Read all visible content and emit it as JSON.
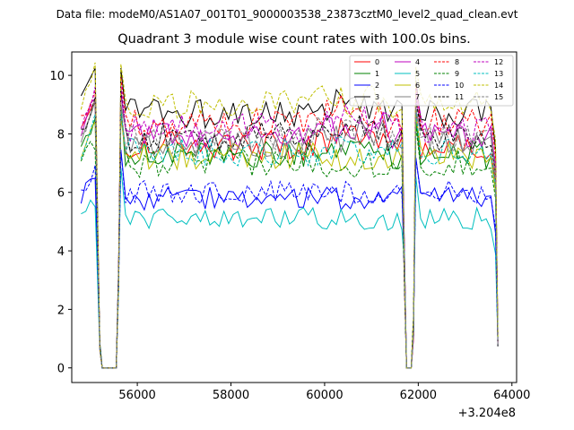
{
  "header": {
    "data_file": "Data file: modeM0/AS1A07_001T01_9000003538_23873cztM0_level2_quad_clean.evt"
  },
  "chart_data": {
    "type": "line",
    "title": "Quadrant 3 module wise count rates with 100.0s bins.",
    "xlabel": "",
    "ylabel": "",
    "x_offset_label": "+3.204e8",
    "xlim": [
      54600,
      64100
    ],
    "ylim": [
      -0.5,
      10.8
    ],
    "xticks": [
      56000,
      58000,
      60000,
      62000,
      64000
    ],
    "xtick_labels": [
      "56000",
      "58000",
      "60000",
      "62000",
      "64000"
    ],
    "yticks": [
      0,
      2,
      4,
      6,
      8,
      10
    ],
    "ytick_labels": [
      "0",
      "2",
      "4",
      "6",
      "8",
      "10"
    ],
    "grid": false,
    "legend_position": "top-right",
    "gaps": [
      {
        "from": 55250,
        "to": 55550
      },
      {
        "from": 61750,
        "to": 61850
      }
    ],
    "segments": [
      {
        "start": 54800,
        "end": 55150
      },
      {
        "start": 55650,
        "end": 61650
      },
      {
        "start": 61950,
        "end": 63650
      }
    ],
    "series": [
      {
        "name": "0",
        "color": "#ff0000",
        "dash": "solid",
        "base": 7.6
      },
      {
        "name": "1",
        "color": "#008000",
        "dash": "solid",
        "base": 7.3
      },
      {
        "name": "2",
        "color": "#0000ff",
        "dash": "solid",
        "base": 5.8
      },
      {
        "name": "3",
        "color": "#000000",
        "dash": "solid",
        "base": 8.7
      },
      {
        "name": "4",
        "color": "#bf00bf",
        "dash": "solid",
        "base": 8.0
      },
      {
        "name": "5",
        "color": "#00bfbf",
        "dash": "solid",
        "base": 5.1
      },
      {
        "name": "6",
        "color": "#bfbf00",
        "dash": "solid",
        "base": 7.2
      },
      {
        "name": "7",
        "color": "#808080",
        "dash": "solid",
        "base": 7.7
      },
      {
        "name": "8",
        "color": "#ff0000",
        "dash": "dashed",
        "base": 8.4
      },
      {
        "name": "9",
        "color": "#008000",
        "dash": "dashed",
        "base": 7.0
      },
      {
        "name": "10",
        "color": "#0000ff",
        "dash": "dashed",
        "base": 6.0
      },
      {
        "name": "11",
        "color": "#000000",
        "dash": "dashed",
        "base": 7.9
      },
      {
        "name": "12",
        "color": "#bf00bf",
        "dash": "dashed",
        "base": 8.2
      },
      {
        "name": "13",
        "color": "#00bfbf",
        "dash": "dashed",
        "base": 7.4
      },
      {
        "name": "14",
        "color": "#bfbf00",
        "dash": "dashed",
        "base": 9.0
      },
      {
        "name": "15",
        "color": "#808080",
        "dash": "dashed",
        "base": 7.8
      }
    ]
  }
}
